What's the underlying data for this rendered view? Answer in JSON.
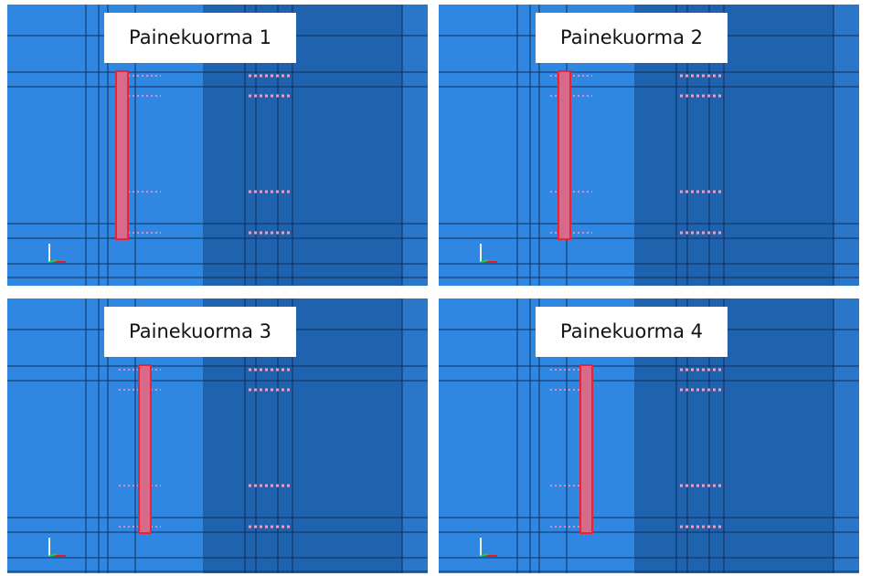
{
  "panels": [
    {
      "label": "Painekuorma 1"
    },
    {
      "label": "Painekuorma 2"
    },
    {
      "label": "Painekuorma 3"
    },
    {
      "label": "Painekuorma 4"
    }
  ]
}
